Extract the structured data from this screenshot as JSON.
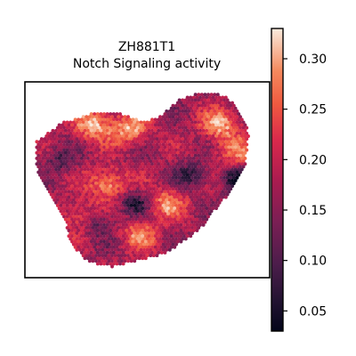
{
  "chart_data": {
    "type": "heatmap",
    "title": "ZH881T1",
    "subtitle": "Notch Signaling activity",
    "xlabel": "",
    "ylabel": "",
    "grid": false,
    "colormap": "rocket",
    "colorbar": {
      "range": [
        0.03,
        0.33
      ],
      "ticks": [
        0.05,
        0.1,
        0.15,
        0.2,
        0.25,
        0.3
      ],
      "tick_labels": [
        "0.05",
        "0.10",
        "0.15",
        "0.20",
        "0.25",
        "0.30"
      ],
      "position": "right"
    },
    "spatial_spots": {
      "shape": "heart-shaped tissue section",
      "value_range": [
        0.03,
        0.33
      ],
      "hotspots": [
        {
          "x": 0.28,
          "y": 0.22,
          "value": 0.31
        },
        {
          "x": 0.43,
          "y": 0.24,
          "value": 0.3
        },
        {
          "x": 0.34,
          "y": 0.52,
          "value": 0.3
        },
        {
          "x": 0.58,
          "y": 0.62,
          "value": 0.28
        },
        {
          "x": 0.47,
          "y": 0.78,
          "value": 0.27
        },
        {
          "x": 0.8,
          "y": 0.22,
          "value": 0.3
        },
        {
          "x": 0.86,
          "y": 0.36,
          "value": 0.26
        },
        {
          "x": 0.22,
          "y": 0.68,
          "value": 0.25
        }
      ],
      "coldspots": [
        {
          "x": 0.87,
          "y": 0.5,
          "value": 0.05
        },
        {
          "x": 0.68,
          "y": 0.48,
          "value": 0.08
        },
        {
          "x": 0.45,
          "y": 0.62,
          "value": 0.07
        },
        {
          "x": 0.3,
          "y": 0.72,
          "value": 0.1
        },
        {
          "x": 0.15,
          "y": 0.4,
          "value": 0.1
        }
      ]
    }
  }
}
